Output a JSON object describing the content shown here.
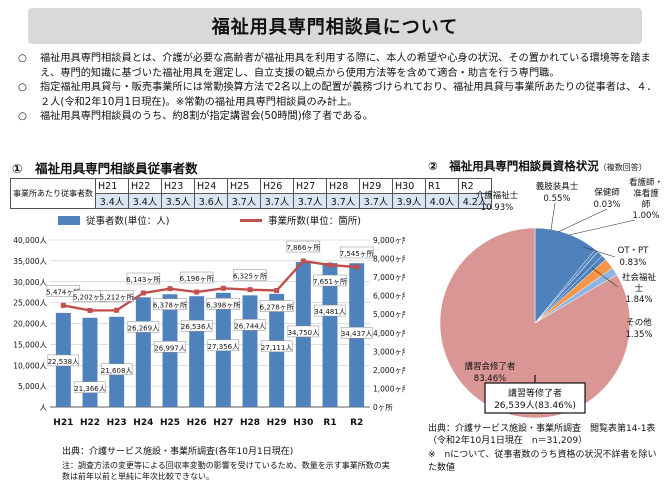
{
  "page": {
    "title": "福祉用具専門相談員について",
    "bullet_mark": "○",
    "bullets": [
      "福祉用具専門相談員とは、介護が必要な高齢者が福祉用具を利用する際に、本人の希望や心身の状況、その置かれている環境等を踏まえ、専門的知識に基づいた福祉用具を選定し、自立支援の観点から使用方法等を含めて適合・助言を行う専門職。",
      "指定福祉用具貸与・販売事業所には常勤換算方法で2名以上の配置が義務づけられており、福祉用具貸与事業所あたりの従事者は、４．２人(令和2年10月1日現在)。※常勤の福祉用具専門相談員のみ計上。",
      "福祉用具専門相談員のうち、約8割が指定講習会(50時間)修了者である。"
    ]
  },
  "section1": {
    "title": "①　福祉用具専門相談員従事者数",
    "ratio_table": {
      "header": "事業所あたり従事者数",
      "years": [
        "H21",
        "H22",
        "H23",
        "H24",
        "H25",
        "H26",
        "H27",
        "H28",
        "H29",
        "H30",
        "R1",
        "R2"
      ],
      "values": [
        "3.4人",
        "3.4人",
        "3.5人",
        "3.6人",
        "3.7人",
        "3.7人",
        "3.7人",
        "3.7人",
        "3.7人",
        "3.9人",
        "4.0人",
        "4.2人"
      ]
    },
    "source": "出典：介護サービス施設・事業所調査(各年10月1日現在)",
    "note": "注：調査方法の変更等による回収率変動の影響を受けているため、数量を示す事業所数の実数は前年以前と単純に年次比較できない。"
  },
  "section2": {
    "title": "②　福祉用具専門相談員資格状況",
    "title_note": "（複数回答）",
    "source_line1": "出典：介護サービス施設・事業所調査　閲覧表第14-1表",
    "source_line2": "（令和2年10月1日現在　n＝31,209）",
    "note": "※　nについて、従事者数のうち資格の状況不詳者を除いた数値",
    "callout_line1": "講習等修了者",
    "callout_line2": "26,539人(83.46%)"
  },
  "chart_data": [
    {
      "type": "bar",
      "categories": [
        "H21",
        "H22",
        "H23",
        "H24",
        "H25",
        "H26",
        "H27",
        "H28",
        "H29",
        "H30",
        "R1",
        "R2"
      ],
      "series": [
        {
          "name": "従事者数(単位：人)",
          "type": "bar",
          "axis": "left",
          "color": "#4f81bd",
          "values": [
            22538,
            21366,
            21608,
            26269,
            26997,
            26536,
            27356,
            26744,
            27111,
            34750,
            34481,
            34437
          ],
          "labels": [
            "22,538人",
            "21,366人",
            "21,608人",
            "26,269人",
            "26,997人",
            "26,536人",
            "27,356人",
            "26,744人",
            "27,111人",
            "34,750人",
            "34,481人",
            "34,437人"
          ]
        },
        {
          "name": "事業所数(単位：箇所)",
          "type": "line",
          "axis": "right",
          "color": "#c0504d",
          "values": [
            5474,
            5202,
            5212,
            6143,
            6378,
            6196,
            6398,
            6325,
            6278,
            7866,
            7651,
            7545
          ],
          "labels": [
            "5,474ヶ所",
            "5,202ヶ所",
            "5,212ヶ所",
            "6,143ヶ所",
            "6,378ヶ所",
            "6,196ヶ所",
            "6,398ヶ所",
            "6,325ヶ所",
            "6,278ヶ所",
            "7,866ヶ所",
            "7,651ヶ所",
            "7,545ヶ所"
          ]
        }
      ],
      "y_left": {
        "range": [
          0,
          40000
        ],
        "step": 5000,
        "ticks": [
          "人",
          "5,000人",
          "10,000人",
          "15,000人",
          "20,000人",
          "25,000人",
          "30,000人",
          "35,000人",
          "40,000人"
        ]
      },
      "y_right": {
        "range": [
          0,
          9000
        ],
        "step": 1000,
        "ticks": [
          "0ヶ所",
          "1,000ヶ所",
          "2,000ヶ所",
          "3,000ヶ所",
          "4,000ヶ所",
          "5,000ヶ所",
          "6,000ヶ所",
          "7,000ヶ所",
          "8,000ヶ所",
          "9,000ヶ所"
        ]
      },
      "grid": true,
      "legend": "top"
    },
    {
      "type": "pie",
      "slices": [
        {
          "label": "講習会修了者",
          "value": 83.46,
          "pct": "83.46%",
          "color": "#d99694"
        },
        {
          "label": "介護福祉士",
          "value": 10.93,
          "pct": "10.93%",
          "color": "#4f81bd"
        },
        {
          "label": "義肢装具士",
          "value": 0.55,
          "pct": "0.55%",
          "color": "#4f81bd"
        },
        {
          "label": "保健師",
          "value": 0.03,
          "pct": "0.03%",
          "color": "#4f81bd"
        },
        {
          "label": "看護師・准看護師",
          "value": 1.0,
          "pct": "1.00%",
          "color": "#4f81bd"
        },
        {
          "label": "OT・PT",
          "value": 0.83,
          "pct": "0.83%",
          "color": "#4f81bd"
        },
        {
          "label": "社会福祉士",
          "value": 1.84,
          "pct": "1.84%",
          "color": "#f79646"
        },
        {
          "label": "その他",
          "value": 1.35,
          "pct": "1.35%",
          "color": "#8eb4e3"
        }
      ]
    }
  ]
}
